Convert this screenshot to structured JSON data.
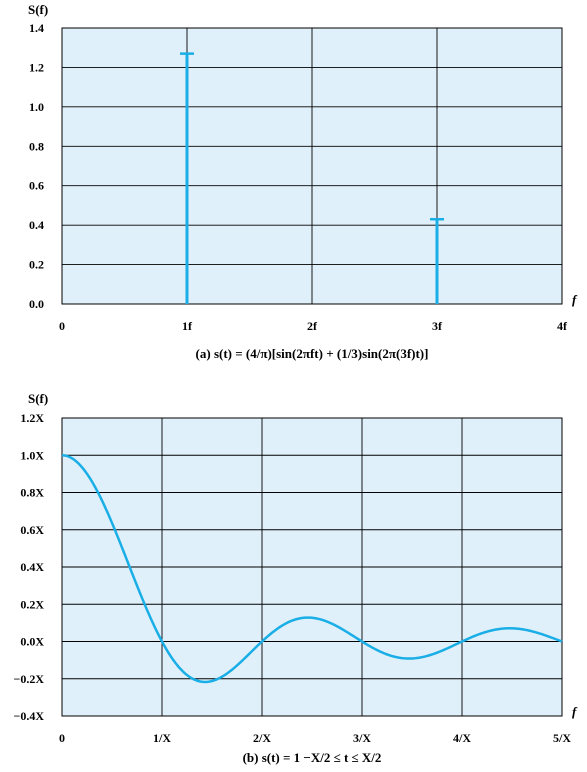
{
  "colors": {
    "plot_background": "#e0f0fa",
    "series": "#19aee6",
    "grid": "#000000"
  },
  "chart_data": [
    {
      "id": "a",
      "type": "bar",
      "ylabel": "S(f)",
      "xlabel": "f",
      "caption": "(a) s(t) = (4/π)[sin(2πft) + (1/3)sin(2π(3f)t)]",
      "xlim": [
        0,
        4
      ],
      "ylim": [
        0,
        1.4
      ],
      "x_ticks": [
        0,
        1,
        2,
        3,
        4
      ],
      "x_tick_labels": [
        "0",
        "1f",
        "2f",
        "3f",
        "4f"
      ],
      "y_ticks": [
        0,
        0.2,
        0.4,
        0.6,
        0.8,
        1.0,
        1.2,
        1.4
      ],
      "y_tick_labels": [
        "0.0",
        "0.2",
        "0.4",
        "0.6",
        "0.8",
        "1.0",
        "1.2",
        "1.4"
      ],
      "grid": true,
      "points": [
        {
          "x": 1,
          "y": 1.27
        },
        {
          "x": 3,
          "y": 0.43
        }
      ]
    },
    {
      "id": "b",
      "type": "line",
      "ylabel": "S(f)",
      "xlabel": "f",
      "caption": "(b) s(t) = 1       −X/2 ≤ t ≤ X/2",
      "xlim": [
        0,
        5
      ],
      "ylim": [
        -0.4,
        1.2
      ],
      "x_ticks": [
        0,
        1,
        2,
        3,
        4,
        5
      ],
      "x_tick_labels": [
        "0",
        "1/X",
        "2/X",
        "3/X",
        "4/X",
        "5/X"
      ],
      "y_ticks": [
        -0.4,
        -0.2,
        0.0,
        0.2,
        0.4,
        0.6,
        0.8,
        1.0,
        1.2
      ],
      "y_tick_labels": [
        "−0.4X",
        "−0.2X",
        "0.0X",
        "0.2X",
        "0.4X",
        "0.6X",
        "0.8X",
        "1.0X",
        "1.2X"
      ],
      "grid": true,
      "function": "sinc",
      "x_samples": [
        0,
        0.25,
        0.5,
        0.75,
        1.0,
        1.25,
        1.43,
        1.75,
        2.0,
        2.25,
        2.5,
        2.75,
        3.0,
        3.25,
        3.5,
        3.75,
        4.0,
        4.25,
        4.5,
        4.75,
        5.0
      ],
      "y_samples": [
        1.0,
        0.9,
        0.64,
        0.3,
        0.0,
        -0.18,
        -0.22,
        -0.13,
        0.0,
        0.1,
        0.13,
        0.08,
        0.0,
        -0.07,
        -0.09,
        -0.06,
        0.0,
        0.05,
        0.07,
        0.05,
        0.0
      ]
    }
  ]
}
